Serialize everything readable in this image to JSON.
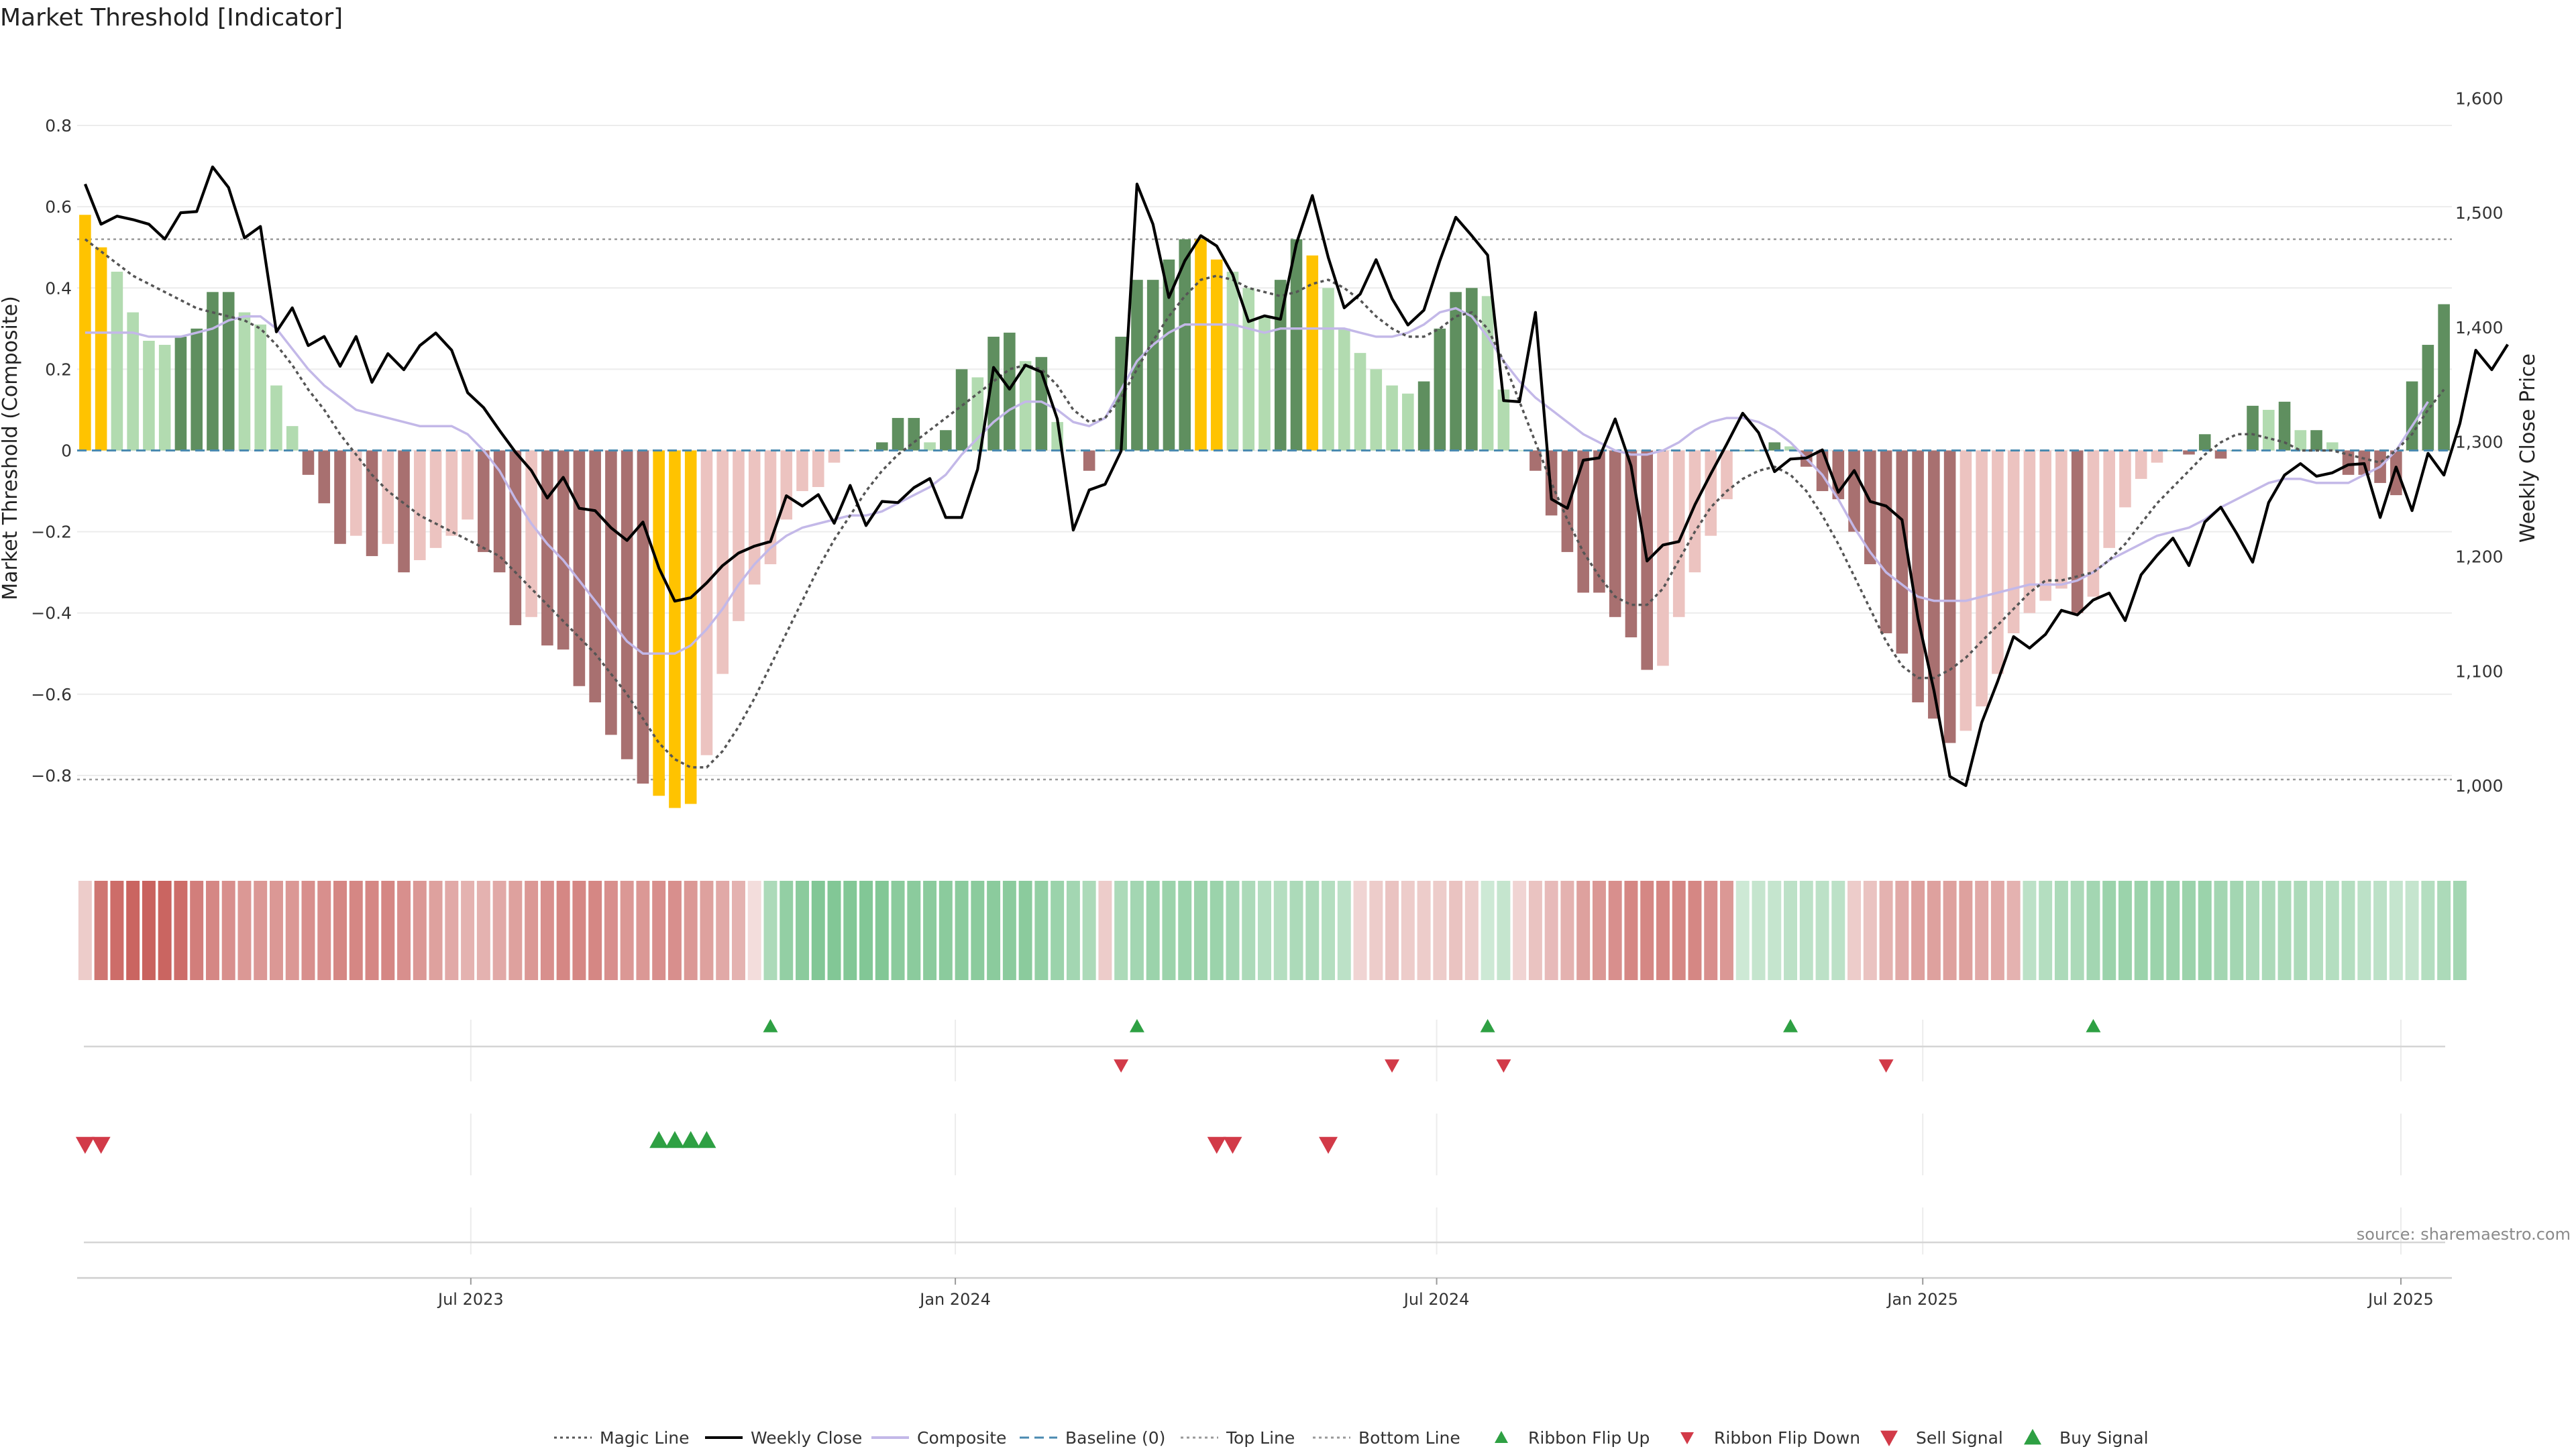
{
  "chart_data": {
    "type": "bar",
    "title": "Market Threshold [Indicator]",
    "ylabel_left": "Market Threshold (Composite)",
    "ylabel_right": "Weekly Close Price",
    "source": "source: sharemaestro.com",
    "left_axis": {
      "ylim": [
        -0.98,
        0.98
      ],
      "ticks": [
        0.8,
        0.6,
        0.4,
        0.2,
        0,
        -0.2,
        -0.4,
        -0.6,
        -0.8
      ]
    },
    "left_tick_labels": [
      "0.8",
      "0.6",
      "0.4",
      "0.2",
      "0",
      "−0.2",
      "−0.4",
      "−0.6",
      "−0.8"
    ],
    "right_axis": {
      "ylim": [
        945,
        1640
      ],
      "ticks": [
        1600,
        1500,
        1400,
        1300,
        1200,
        1100,
        1000
      ]
    },
    "right_tick_labels": [
      "1,600",
      "1,500",
      "1,400",
      "1,300",
      "1,200",
      "1,100",
      "1,000"
    ],
    "x_start": "2023-01-13",
    "x_tick_labels": [
      "Jul 2023",
      "Jan 2024",
      "Jul 2024",
      "Jan 2025",
      "Jul 2025"
    ],
    "x_tick_weeks": [
      24.7,
      55.1,
      85.3,
      115.8,
      145.8
    ],
    "top_line": 0.52,
    "bottom_line": -0.81,
    "composite": [
      0.58,
      0.5,
      0.44,
      0.34,
      0.27,
      0.26,
      0.28,
      0.3,
      0.39,
      0.39,
      0.34,
      0.31,
      0.16,
      0.06,
      -0.06,
      -0.13,
      -0.23,
      -0.21,
      -0.26,
      -0.23,
      -0.3,
      -0.27,
      -0.24,
      -0.21,
      -0.17,
      -0.25,
      -0.3,
      -0.43,
      -0.41,
      -0.48,
      -0.49,
      -0.58,
      -0.62,
      -0.7,
      -0.76,
      -0.82,
      -0.85,
      -0.88,
      -0.87,
      -0.75,
      -0.55,
      -0.42,
      -0.33,
      -0.28,
      -0.17,
      -0.1,
      -0.09,
      -0.03,
      0.0,
      0.0,
      0.02,
      0.08,
      0.08,
      0.02,
      0.05,
      0.2,
      0.18,
      0.28,
      0.29,
      0.22,
      0.23,
      0.07,
      0.0,
      -0.05,
      0.0,
      0.28,
      0.42,
      0.42,
      0.47,
      0.52,
      0.52,
      0.47,
      0.44,
      0.4,
      0.33,
      0.42,
      0.52,
      0.48,
      0.4,
      0.3,
      0.24,
      0.2,
      0.16,
      0.14,
      0.17,
      0.3,
      0.39,
      0.4,
      0.38,
      0.15,
      0.0,
      -0.05,
      -0.16,
      -0.25,
      -0.35,
      -0.35,
      -0.41,
      -0.46,
      -0.54,
      -0.53,
      -0.41,
      -0.3,
      -0.21,
      -0.12,
      0.0,
      0.0,
      0.02,
      0.01,
      -0.04,
      -0.1,
      -0.12,
      -0.2,
      -0.28,
      -0.45,
      -0.5,
      -0.62,
      -0.66,
      -0.72,
      -0.69,
      -0.63,
      -0.55,
      -0.45,
      -0.4,
      -0.37,
      -0.34,
      -0.4,
      -0.36,
      -0.24,
      -0.14,
      -0.07,
      -0.03,
      0.0,
      -0.01,
      0.04,
      -0.02,
      0.0,
      0.11,
      0.1,
      0.12,
      0.05,
      0.05,
      0.02,
      -0.06,
      -0.06,
      -0.08,
      -0.11,
      0.17,
      0.26,
      0.36
    ],
    "weekly_close": [
      1525,
      1490,
      1497,
      1494,
      1490,
      1477,
      1500,
      1501,
      1540,
      1522,
      1478,
      1488,
      1396,
      1417,
      1384,
      1392,
      1366,
      1392,
      1352,
      1377,
      1363,
      1384,
      1395,
      1380,
      1343,
      1330,
      1310,
      1291,
      1275,
      1251,
      1269,
      1242,
      1240,
      1225,
      1214,
      1230,
      1190,
      1161,
      1164,
      1177,
      1192,
      1203,
      1209,
      1213,
      1253,
      1244,
      1254,
      1229,
      1262,
      1227,
      1248,
      1247,
      1260,
      1268,
      1234,
      1234,
      1276,
      1365,
      1346,
      1367,
      1361,
      1320,
      1223,
      1258,
      1263,
      1292,
      1525,
      1490,
      1426,
      1458,
      1480,
      1471,
      1446,
      1405,
      1410,
      1407,
      1473,
      1515,
      1461,
      1417,
      1429,
      1459,
      1425,
      1402,
      1415,
      1458,
      1496,
      1480,
      1463,
      1336,
      1335,
      1413,
      1250,
      1242,
      1284,
      1286,
      1320,
      1279,
      1196,
      1210,
      1213,
      1245,
      1272,
      1298,
      1325,
      1308,
      1274,
      1285,
      1286,
      1293,
      1256,
      1275,
      1248,
      1244,
      1232,
      1146,
      1083,
      1008,
      1000,
      1055,
      1091,
      1130,
      1120,
      1132,
      1153,
      1149,
      1162,
      1168,
      1144,
      1184,
      1201,
      1216,
      1192,
      1230,
      1243,
      1220,
      1195,
      1247,
      1271,
      1281,
      1270,
      1273,
      1280,
      1281,
      1234,
      1278,
      1240,
      1290,
      1271,
      1316,
      1380,
      1363,
      1385
    ],
    "magic_line": [
      0.52,
      0.49,
      0.46,
      0.43,
      0.41,
      0.39,
      0.37,
      0.35,
      0.34,
      0.33,
      0.32,
      0.3,
      0.26,
      0.21,
      0.15,
      0.1,
      0.04,
      -0.01,
      -0.06,
      -0.1,
      -0.13,
      -0.16,
      -0.18,
      -0.2,
      -0.22,
      -0.24,
      -0.26,
      -0.3,
      -0.34,
      -0.38,
      -0.42,
      -0.46,
      -0.5,
      -0.55,
      -0.6,
      -0.66,
      -0.72,
      -0.76,
      -0.78,
      -0.78,
      -0.74,
      -0.68,
      -0.61,
      -0.53,
      -0.45,
      -0.37,
      -0.29,
      -0.22,
      -0.16,
      -0.1,
      -0.05,
      -0.01,
      0.02,
      0.05,
      0.08,
      0.11,
      0.14,
      0.17,
      0.2,
      0.21,
      0.2,
      0.16,
      0.1,
      0.07,
      0.08,
      0.13,
      0.2,
      0.27,
      0.33,
      0.38,
      0.42,
      0.43,
      0.42,
      0.4,
      0.39,
      0.38,
      0.39,
      0.41,
      0.42,
      0.4,
      0.37,
      0.33,
      0.3,
      0.28,
      0.28,
      0.3,
      0.33,
      0.34,
      0.3,
      0.22,
      0.12,
      0.02,
      -0.08,
      -0.17,
      -0.25,
      -0.31,
      -0.36,
      -0.38,
      -0.38,
      -0.34,
      -0.27,
      -0.2,
      -0.14,
      -0.1,
      -0.07,
      -0.05,
      -0.04,
      -0.06,
      -0.1,
      -0.16,
      -0.23,
      -0.31,
      -0.39,
      -0.47,
      -0.53,
      -0.56,
      -0.56,
      -0.54,
      -0.51,
      -0.47,
      -0.43,
      -0.39,
      -0.35,
      -0.32,
      -0.32,
      -0.31,
      -0.3,
      -0.27,
      -0.23,
      -0.18,
      -0.13,
      -0.09,
      -0.05,
      -0.01,
      0.02,
      0.04,
      0.04,
      0.03,
      0.02,
      0.0,
      0.0,
      0.0,
      -0.01,
      -0.02,
      -0.03,
      0.0,
      0.04,
      0.1,
      0.15
    ],
    "composite_smooth": [
      0.29,
      0.29,
      0.29,
      0.29,
      0.28,
      0.28,
      0.28,
      0.29,
      0.3,
      0.32,
      0.33,
      0.33,
      0.3,
      0.25,
      0.2,
      0.16,
      0.13,
      0.1,
      0.09,
      0.08,
      0.07,
      0.06,
      0.06,
      0.06,
      0.04,
      0.0,
      -0.05,
      -0.12,
      -0.18,
      -0.23,
      -0.27,
      -0.32,
      -0.37,
      -0.42,
      -0.47,
      -0.5,
      -0.5,
      -0.5,
      -0.48,
      -0.44,
      -0.39,
      -0.33,
      -0.28,
      -0.24,
      -0.21,
      -0.19,
      -0.18,
      -0.17,
      -0.16,
      -0.16,
      -0.15,
      -0.13,
      -0.11,
      -0.09,
      -0.06,
      -0.01,
      0.03,
      0.07,
      0.1,
      0.12,
      0.12,
      0.1,
      0.07,
      0.06,
      0.08,
      0.15,
      0.22,
      0.26,
      0.29,
      0.31,
      0.31,
      0.31,
      0.31,
      0.3,
      0.29,
      0.3,
      0.3,
      0.3,
      0.3,
      0.3,
      0.29,
      0.28,
      0.28,
      0.29,
      0.31,
      0.34,
      0.35,
      0.33,
      0.28,
      0.22,
      0.17,
      0.13,
      0.1,
      0.07,
      0.04,
      0.02,
      0.0,
      -0.01,
      -0.01,
      0.0,
      0.02,
      0.05,
      0.07,
      0.08,
      0.08,
      0.07,
      0.05,
      0.02,
      -0.02,
      -0.06,
      -0.12,
      -0.19,
      -0.25,
      -0.3,
      -0.33,
      -0.36,
      -0.37,
      -0.37,
      -0.37,
      -0.36,
      -0.35,
      -0.34,
      -0.33,
      -0.33,
      -0.33,
      -0.32,
      -0.3,
      -0.27,
      -0.25,
      -0.23,
      -0.21,
      -0.2,
      -0.19,
      -0.17,
      -0.14,
      -0.12,
      -0.1,
      -0.08,
      -0.07,
      -0.07,
      -0.08,
      -0.08,
      -0.08,
      -0.06,
      -0.04,
      0.0,
      0.06,
      0.12
    ],
    "ribbon_sentiment": [
      -0.3,
      -0.8,
      -0.85,
      -0.9,
      -0.95,
      -0.9,
      -0.85,
      -0.75,
      -0.7,
      -0.65,
      -0.6,
      -0.6,
      -0.6,
      -0.6,
      -0.65,
      -0.65,
      -0.7,
      -0.7,
      -0.7,
      -0.7,
      -0.65,
      -0.6,
      -0.55,
      -0.5,
      -0.45,
      -0.45,
      -0.5,
      -0.55,
      -0.6,
      -0.65,
      -0.7,
      -0.7,
      -0.7,
      -0.65,
      -0.6,
      -0.6,
      -0.65,
      -0.65,
      -0.6,
      -0.55,
      -0.5,
      -0.45,
      -0.2,
      0.5,
      0.65,
      0.7,
      0.75,
      0.75,
      0.75,
      0.75,
      0.75,
      0.7,
      0.7,
      0.7,
      0.7,
      0.7,
      0.7,
      0.7,
      0.7,
      0.7,
      0.65,
      0.6,
      0.55,
      0.5,
      -0.3,
      0.5,
      0.55,
      0.6,
      0.6,
      0.6,
      0.6,
      0.6,
      0.55,
      0.5,
      0.45,
      0.45,
      0.5,
      0.5,
      0.45,
      0.4,
      -0.25,
      -0.3,
      -0.35,
      -0.3,
      -0.3,
      -0.3,
      -0.35,
      -0.3,
      0.3,
      0.35,
      -0.25,
      -0.35,
      -0.4,
      -0.45,
      -0.55,
      -0.6,
      -0.65,
      -0.7,
      -0.7,
      -0.7,
      -0.7,
      -0.7,
      -0.65,
      -0.6,
      0.3,
      0.35,
      0.35,
      0.4,
      0.4,
      0.4,
      0.4,
      -0.3,
      -0.35,
      -0.45,
      -0.5,
      -0.55,
      -0.55,
      -0.55,
      -0.55,
      -0.5,
      -0.5,
      -0.45,
      0.4,
      0.45,
      0.5,
      0.5,
      0.55,
      0.6,
      0.6,
      0.6,
      0.6,
      0.6,
      0.6,
      0.6,
      0.55,
      0.55,
      0.5,
      0.5,
      0.5,
      0.5,
      0.45,
      0.45,
      0.45,
      0.4,
      0.4,
      0.35,
      0.35,
      0.45,
      0.5,
      0.55
    ],
    "gold_weeks": [
      0,
      1,
      36,
      37,
      38,
      70,
      71,
      77
    ],
    "ribbon_flip_up_weeks": [
      43,
      66,
      88,
      107,
      126
    ],
    "ribbon_flip_down_weeks": [
      65,
      82,
      89,
      113
    ],
    "sell_signal_weeks": [
      0,
      1,
      71,
      72,
      78
    ],
    "buy_signal_weeks": [
      36,
      37,
      38,
      39
    ],
    "colors": {
      "pos_strong": "#5f8f5f",
      "pos_light": "#b2dbb0",
      "neg_strong": "#a87070",
      "neg_light": "#ecc3c0",
      "gold": "#ffc300",
      "close": "#000000",
      "composite_line": "#c3b8e8",
      "magic": "#555555",
      "baseline": "#4a8ab0",
      "up_marker": "#2ea043",
      "down_marker": "#d23a48",
      "ribbon_green": "#7fc693",
      "ribbon_red": "#c9635f"
    },
    "legend": [
      {
        "label": "Magic Line",
        "icon": "dotted-line"
      },
      {
        "label": "Weekly Close",
        "icon": "solid-line"
      },
      {
        "label": "Composite",
        "icon": "lavender-line"
      },
      {
        "label": "Baseline (0)",
        "icon": "dashed-line"
      },
      {
        "label": "Top Line",
        "icon": "dotted-line-light"
      },
      {
        "label": "Bottom Line",
        "icon": "dotted-line-light"
      },
      {
        "label": "Ribbon Flip Up",
        "icon": "triangle-up-small"
      },
      {
        "label": "Ribbon Flip Down",
        "icon": "triangle-down-small"
      },
      {
        "label": "Sell Signal",
        "icon": "triangle-down"
      },
      {
        "label": "Buy Signal",
        "icon": "triangle-up"
      }
    ]
  }
}
